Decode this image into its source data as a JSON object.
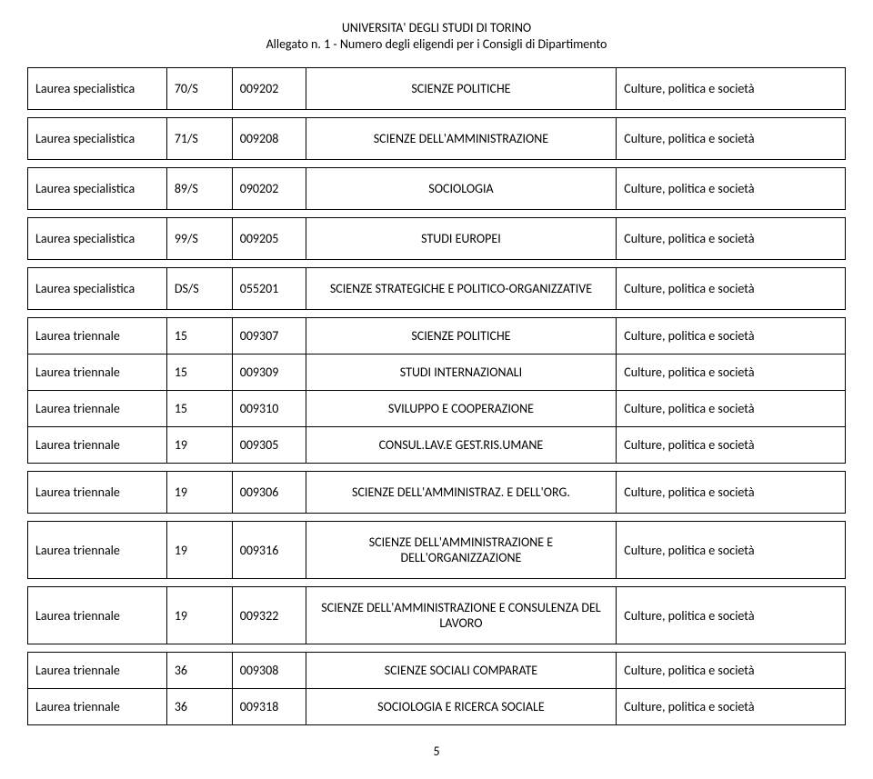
{
  "header": {
    "line1": "UNIVERSITA' DEGLI STUDI DI TORINO",
    "line2": "Allegato n. 1 - Numero degli eligendi per i Consigli di Dipartimento"
  },
  "pageNumber": "5",
  "colors": {
    "background": "#ffffff",
    "text": "#000000",
    "border": "#000000"
  },
  "rows": [
    {
      "degree": "Laurea specialistica",
      "class": "70/S",
      "code": "009202",
      "subject": "SCIENZE POLITICHE",
      "dept": "Culture, politica e società",
      "tall": true
    },
    {
      "degree": "Laurea specialistica",
      "class": "71/S",
      "code": "009208",
      "subject": "SCIENZE DELL'AMMINISTRAZIONE",
      "dept": "Culture, politica e società",
      "tall": true
    },
    {
      "degree": "Laurea specialistica",
      "class": "89/S",
      "code": "090202",
      "subject": "SOCIOLOGIA",
      "dept": "Culture, politica e società",
      "tall": true
    },
    {
      "degree": "Laurea specialistica",
      "class": "99/S",
      "code": "009205",
      "subject": "STUDI EUROPEI",
      "dept": "Culture, politica e società",
      "tall": true
    },
    {
      "degree": "Laurea specialistica",
      "class": "DS/S",
      "code": "055201",
      "subject": "SCIENZE STRATEGICHE E POLITICO-ORGANIZZATIVE",
      "dept": "Culture, politica e società",
      "tall": true
    },
    {
      "degree": "Laurea triennale",
      "class": "15",
      "code": "009307",
      "subject": "SCIENZE POLITICHE",
      "dept": "Culture, politica e società"
    },
    {
      "degree": "Laurea triennale",
      "class": "15",
      "code": "009309",
      "subject": "STUDI INTERNAZIONALI",
      "dept": "Culture, politica e società"
    },
    {
      "degree": "Laurea triennale",
      "class": "15",
      "code": "009310",
      "subject": "SVILUPPO E COOPERAZIONE",
      "dept": "Culture, politica e società"
    },
    {
      "degree": "Laurea triennale",
      "class": "19",
      "code": "009305",
      "subject": "CONSUL.LAV.E GEST.RIS.UMANE",
      "dept": "Culture, politica e società"
    },
    {
      "degree": "Laurea triennale",
      "class": "19",
      "code": "009306",
      "subject": "SCIENZE DELL'AMMINISTRAZ. E DELL'ORG.",
      "dept": "Culture, politica e società",
      "tall": true
    },
    {
      "degree": "Laurea triennale",
      "class": "19",
      "code": "009316",
      "subject": "SCIENZE DELL'AMMINISTRAZIONE E DELL'ORGANIZZAZIONE",
      "dept": "Culture, politica e società",
      "tall": true
    },
    {
      "degree": "Laurea triennale",
      "class": "19",
      "code": "009322",
      "subject": "SCIENZE DELL'AMMINISTRAZIONE E CONSULENZA DEL LAVORO",
      "dept": "Culture, politica e società",
      "tall": true
    },
    {
      "degree": "Laurea triennale",
      "class": "36",
      "code": "009308",
      "subject": "SCIENZE SOCIALI COMPARATE",
      "dept": "Culture, politica e società"
    },
    {
      "degree": "Laurea triennale",
      "class": "36",
      "code": "009318",
      "subject": "SOCIOLOGIA E RICERCA SOCIALE",
      "dept": "Culture, politica e società"
    }
  ]
}
